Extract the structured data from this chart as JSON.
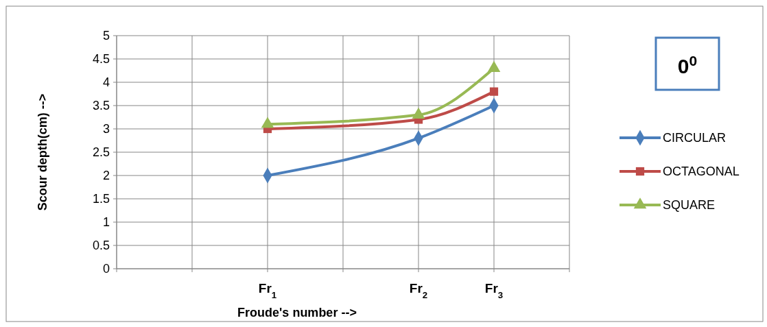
{
  "chart_data": {
    "type": "line",
    "xlabel": "Froude's number -->",
    "ylabel": "Scour depth(cm) -->",
    "annotations": [
      "0$^{0}$"
    ],
    "categories": [
      null,
      null,
      "Fr$_{1}$",
      null,
      "Fr$_{2}$",
      "Fr$_{3}$",
      null
    ],
    "ylim": [
      0,
      5
    ],
    "yticks": [
      0,
      0.5,
      1,
      1.5,
      2,
      2.5,
      3,
      3.5,
      4,
      4.5,
      5
    ],
    "grid": true,
    "legend": "right",
    "line_style": "solid",
    "series": [
      {
        "name": "CIRCULAR",
        "color": "#4a7ebb",
        "marker": "diamond",
        "values": [
          null,
          null,
          2,
          null,
          2.8,
          3.5,
          null
        ]
      },
      {
        "name": "OCTAGONAL",
        "color": "#be4b48",
        "marker": "square",
        "values": [
          null,
          null,
          3,
          null,
          3.2,
          3.8,
          null
        ]
      },
      {
        "name": "SQUARE",
        "color": "#98b954",
        "marker": "triangle",
        "values": [
          null,
          null,
          3.1,
          null,
          3.3,
          4.3,
          null
        ]
      }
    ]
  }
}
